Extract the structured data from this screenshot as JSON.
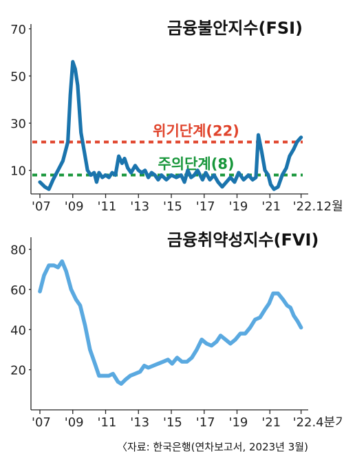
{
  "chart_data": [
    {
      "type": "line",
      "title": "금융불안지수(FSI)",
      "ylim": [
        0,
        72
      ],
      "yticks": [
        10,
        30,
        50,
        70
      ],
      "xlim": [
        2007,
        2023.0
      ],
      "xticks": [
        {
          "x": 2007.0,
          "label": "'07"
        },
        {
          "x": 2009.0,
          "label": "'09"
        },
        {
          "x": 2011.0,
          "label": "'11"
        },
        {
          "x": 2013.0,
          "label": "'13"
        },
        {
          "x": 2015.0,
          "label": "'15"
        },
        {
          "x": 2017.0,
          "label": "'17"
        },
        {
          "x": 2019.0,
          "label": "'19"
        },
        {
          "x": 2021.0,
          "label": "'21"
        },
        {
          "x": 2022.9,
          "label": "'22.12월"
        }
      ],
      "series": [
        {
          "color": "#1a74ad",
          "points": [
            [
              2007.0,
              5
            ],
            [
              2007.3,
              3
            ],
            [
              2007.55,
              2
            ],
            [
              2007.8,
              6
            ],
            [
              2008.1,
              10
            ],
            [
              2008.4,
              14
            ],
            [
              2008.7,
              22
            ],
            [
              2008.85,
              42
            ],
            [
              2009.0,
              56
            ],
            [
              2009.15,
              53
            ],
            [
              2009.3,
              46
            ],
            [
              2009.5,
              26
            ],
            [
              2009.7,
              18
            ],
            [
              2009.9,
              10
            ],
            [
              2010.1,
              8
            ],
            [
              2010.3,
              9
            ],
            [
              2010.45,
              5
            ],
            [
              2010.6,
              9
            ],
            [
              2010.8,
              7
            ],
            [
              2011.0,
              8
            ],
            [
              2011.2,
              7
            ],
            [
              2011.4,
              9
            ],
            [
              2011.6,
              8
            ],
            [
              2011.8,
              16
            ],
            [
              2012.0,
              13
            ],
            [
              2012.15,
              15
            ],
            [
              2012.35,
              11
            ],
            [
              2012.55,
              9
            ],
            [
              2012.8,
              12
            ],
            [
              2013.0,
              10
            ],
            [
              2013.2,
              9
            ],
            [
              2013.4,
              10
            ],
            [
              2013.6,
              7
            ],
            [
              2013.8,
              9
            ],
            [
              2014.0,
              8
            ],
            [
              2014.2,
              6
            ],
            [
              2014.4,
              8
            ],
            [
              2014.7,
              6
            ],
            [
              2015.0,
              8
            ],
            [
              2015.3,
              7
            ],
            [
              2015.6,
              8
            ],
            [
              2015.8,
              5
            ],
            [
              2016.0,
              10
            ],
            [
              2016.2,
              7
            ],
            [
              2016.4,
              8
            ],
            [
              2016.6,
              10
            ],
            [
              2016.9,
              6
            ],
            [
              2017.1,
              9
            ],
            [
              2017.35,
              6
            ],
            [
              2017.6,
              8
            ],
            [
              2017.85,
              5
            ],
            [
              2018.1,
              3
            ],
            [
              2018.35,
              5
            ],
            [
              2018.6,
              7
            ],
            [
              2018.85,
              5
            ],
            [
              2019.1,
              9
            ],
            [
              2019.4,
              6
            ],
            [
              2019.7,
              8
            ],
            [
              2019.95,
              6
            ],
            [
              2020.15,
              7
            ],
            [
              2020.3,
              25
            ],
            [
              2020.5,
              18
            ],
            [
              2020.7,
              10
            ],
            [
              2020.9,
              8
            ],
            [
              2021.05,
              4
            ],
            [
              2021.25,
              2
            ],
            [
              2021.5,
              3
            ],
            [
              2021.75,
              8
            ],
            [
              2022.0,
              11
            ],
            [
              2022.2,
              16
            ],
            [
              2022.45,
              19
            ],
            [
              2022.65,
              22
            ],
            [
              2022.9,
              24
            ]
          ]
        }
      ],
      "reference_lines": [
        {
          "label": "위기단계(22)",
          "value": 22,
          "color": "#e0432b"
        },
        {
          "label": "주의단계(8)",
          "value": 8,
          "color": "#17963a"
        }
      ]
    },
    {
      "type": "line",
      "title": "금융취약성지수(FVI)",
      "ylim": [
        0,
        86
      ],
      "yticks": [
        20,
        40,
        60,
        80
      ],
      "xlim": [
        2007,
        2023.0
      ],
      "xticks": [
        {
          "x": 2007.0,
          "label": "'07"
        },
        {
          "x": 2009.0,
          "label": "'09"
        },
        {
          "x": 2011.0,
          "label": "'11"
        },
        {
          "x": 2013.0,
          "label": "'13"
        },
        {
          "x": 2015.0,
          "label": "'15"
        },
        {
          "x": 2017.0,
          "label": "'17"
        },
        {
          "x": 2019.0,
          "label": "'19"
        },
        {
          "x": 2021.0,
          "label": "'21"
        },
        {
          "x": 2022.9,
          "label": "'22.4분기"
        }
      ],
      "series": [
        {
          "color": "#5aa9e0",
          "points": [
            [
              2007.0,
              59
            ],
            [
              2007.25,
              67
            ],
            [
              2007.55,
              72
            ],
            [
              2007.85,
              72
            ],
            [
              2008.1,
              71
            ],
            [
              2008.35,
              74
            ],
            [
              2008.6,
              69
            ],
            [
              2008.9,
              60
            ],
            [
              2009.2,
              55
            ],
            [
              2009.45,
              52
            ],
            [
              2009.75,
              42
            ],
            [
              2010.05,
              30
            ],
            [
              2010.35,
              23
            ],
            [
              2010.6,
              17
            ],
            [
              2010.9,
              17
            ],
            [
              2011.2,
              17
            ],
            [
              2011.45,
              18
            ],
            [
              2011.75,
              14
            ],
            [
              2011.95,
              13
            ],
            [
              2012.2,
              15
            ],
            [
              2012.5,
              17
            ],
            [
              2012.8,
              18
            ],
            [
              2013.1,
              19
            ],
            [
              2013.35,
              22
            ],
            [
              2013.6,
              21
            ],
            [
              2013.9,
              22
            ],
            [
              2014.2,
              23
            ],
            [
              2014.5,
              24
            ],
            [
              2014.8,
              25
            ],
            [
              2015.05,
              23
            ],
            [
              2015.35,
              26
            ],
            [
              2015.65,
              24
            ],
            [
              2015.95,
              24
            ],
            [
              2016.25,
              26
            ],
            [
              2016.55,
              30
            ],
            [
              2016.85,
              35
            ],
            [
              2017.15,
              33
            ],
            [
              2017.45,
              32
            ],
            [
              2017.75,
              34
            ],
            [
              2018.0,
              37
            ],
            [
              2018.3,
              35
            ],
            [
              2018.6,
              33
            ],
            [
              2018.9,
              35
            ],
            [
              2019.2,
              38
            ],
            [
              2019.5,
              38
            ],
            [
              2019.8,
              41
            ],
            [
              2020.1,
              45
            ],
            [
              2020.4,
              46
            ],
            [
              2020.7,
              50
            ],
            [
              2020.95,
              53
            ],
            [
              2021.2,
              58
            ],
            [
              2021.5,
              58
            ],
            [
              2021.8,
              55
            ],
            [
              2022.05,
              52
            ],
            [
              2022.25,
              51
            ],
            [
              2022.45,
              47
            ],
            [
              2022.7,
              44
            ],
            [
              2022.9,
              41
            ]
          ]
        }
      ]
    }
  ],
  "source": "〈자료: 한국은행(연차보고서, 2023년 3월)"
}
